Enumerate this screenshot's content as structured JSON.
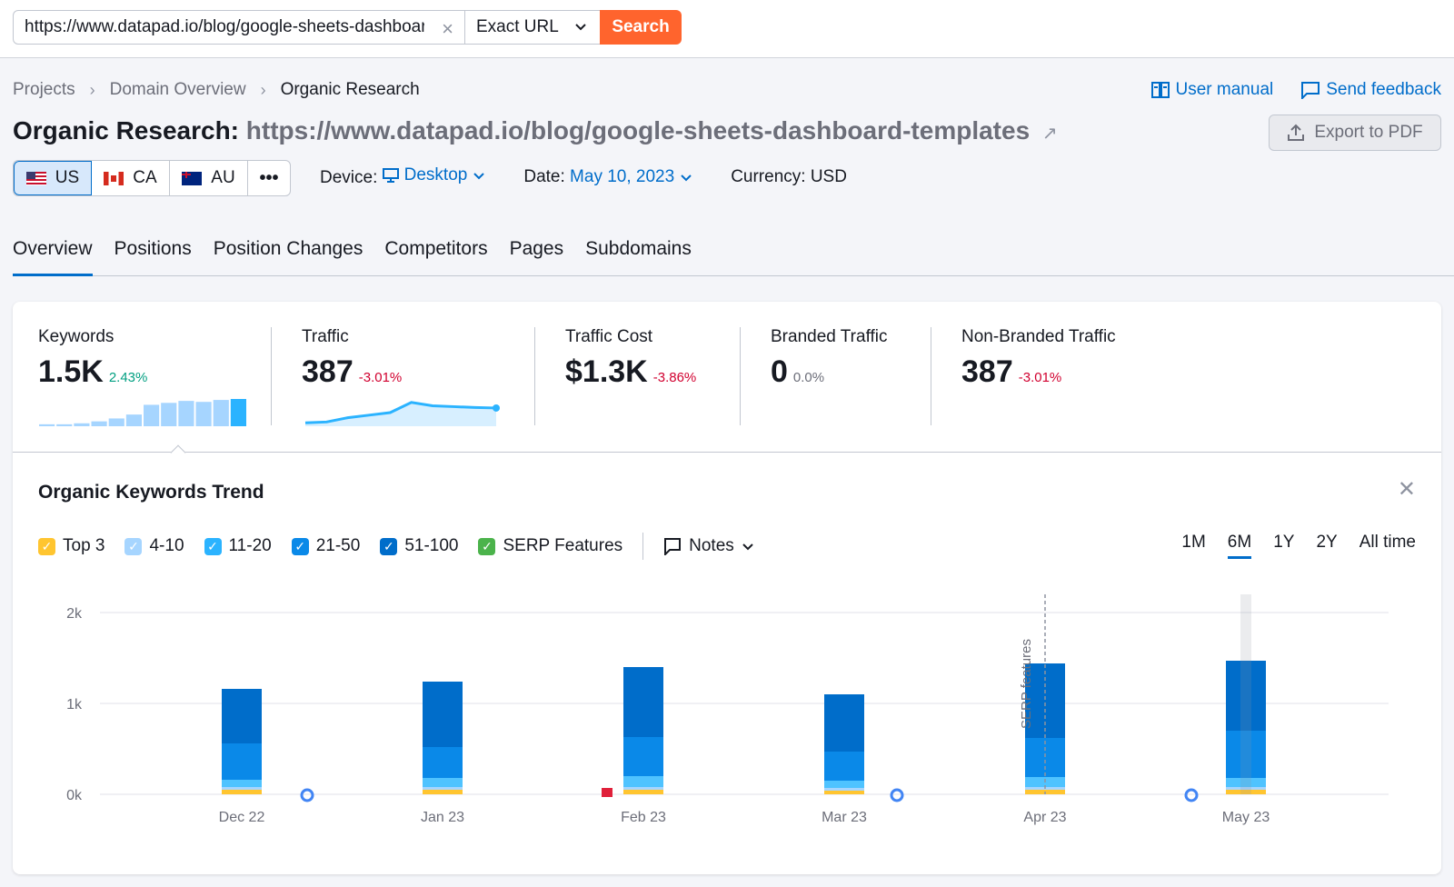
{
  "search": {
    "url_value": "https://www.datapad.io/blog/google-sheets-dashboard-templates",
    "mode": "Exact URL",
    "button": "Search"
  },
  "breadcrumb": [
    "Projects",
    "Domain Overview",
    "Organic Research"
  ],
  "links": {
    "manual": "User manual",
    "feedback": "Send feedback"
  },
  "title": {
    "prefix": "Organic Research:",
    "url": "https://www.datapad.io/blog/google-sheets-dashboard-templates"
  },
  "export_label": "Export to PDF",
  "databases": [
    "US",
    "CA",
    "AU"
  ],
  "filters": {
    "device_label": "Device:",
    "device": "Desktop",
    "date_label": "Date:",
    "date": "May 10, 2023",
    "currency": "Currency: USD"
  },
  "tabs": [
    "Overview",
    "Positions",
    "Position Changes",
    "Competitors",
    "Pages",
    "Subdomains"
  ],
  "metrics": [
    {
      "label": "Keywords",
      "value": "1.5K",
      "delta": "2.43%"
    },
    {
      "label": "Traffic",
      "value": "387",
      "delta": "-3.01%"
    },
    {
      "label": "Traffic Cost",
      "value": "$1.3K",
      "delta": "-3.86%"
    },
    {
      "label": "Branded Traffic",
      "value": "0",
      "delta": "0.0%"
    },
    {
      "label": "Non-Branded Traffic",
      "value": "387",
      "delta": "-3.01%"
    }
  ],
  "keywords_sparkline": [
    2,
    2,
    3,
    5,
    8,
    12,
    22,
    24,
    26,
    25,
    27,
    28
  ],
  "traffic_sparkline": [
    300,
    305,
    330,
    345,
    360,
    420,
    400,
    395,
    390,
    387
  ],
  "trend": {
    "title": "Organic Keywords Trend"
  },
  "legend": [
    {
      "label": "Top 3",
      "color": "#ffc530"
    },
    {
      "label": "4-10",
      "color": "#a6d5ff"
    },
    {
      "label": "11-20",
      "color": "#2bb3ff"
    },
    {
      "label": "21-50",
      "color": "#0a89e8"
    },
    {
      "label": "51-100",
      "color": "#006dca"
    },
    {
      "label": "SERP Features",
      "color": "#4bb34b"
    }
  ],
  "notes_label": "Notes",
  "ranges": [
    "1M",
    "6M",
    "1Y",
    "2Y",
    "All time"
  ],
  "chart_data": {
    "type": "bar",
    "categories": [
      "Dec 22",
      "Jan 23",
      "Feb 23",
      "Mar 23",
      "Apr 23",
      "May 23"
    ],
    "series": [
      {
        "name": "Top 3",
        "values": [
          50,
          50,
          50,
          40,
          50,
          50
        ]
      },
      {
        "name": "4-10",
        "values": [
          30,
          30,
          30,
          30,
          30,
          30
        ]
      },
      {
        "name": "11-20",
        "values": [
          80,
          100,
          120,
          80,
          110,
          100
        ]
      },
      {
        "name": "21-50",
        "values": [
          400,
          340,
          430,
          320,
          430,
          520
        ]
      },
      {
        "name": "51-100",
        "values": [
          600,
          720,
          770,
          630,
          820,
          770
        ]
      }
    ],
    "ylim": [
      0,
      2000
    ],
    "yticks": [
      "0k",
      "1k",
      "2k"
    ],
    "annotation": "SERP features",
    "colors": [
      "#ffc530",
      "#a6d5ff",
      "#4fc3ff",
      "#0a89e8",
      "#006dca"
    ]
  }
}
